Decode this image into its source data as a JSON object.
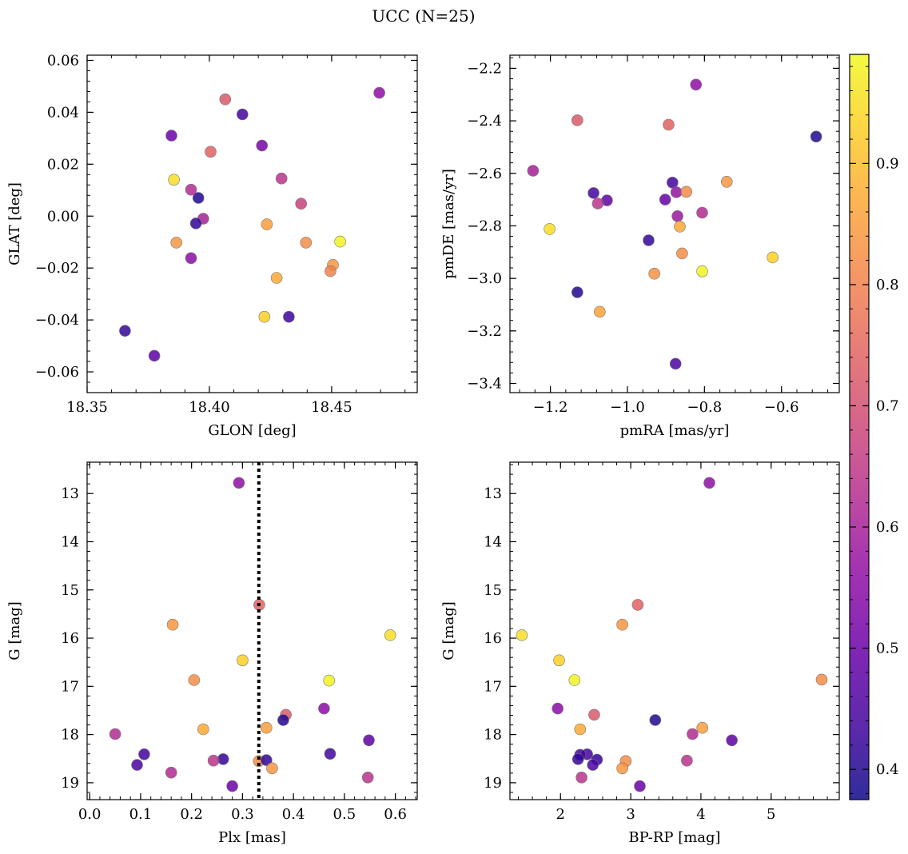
{
  "title": "UCC (N=25)",
  "colorbar": {
    "range": [
      0.375,
      0.99
    ],
    "ticks": [
      0.4,
      0.5,
      0.6,
      0.7,
      0.8,
      0.9
    ],
    "tick_labels": [
      "0.4",
      "0.5",
      "0.6",
      "0.7",
      "0.8",
      "0.9"
    ],
    "colormap": "plasma"
  },
  "chart_data": [
    {
      "type": "scatter",
      "xlabel": "GLON [deg]",
      "ylabel": "GLAT [deg]",
      "xlim": [
        18.35,
        18.485
      ],
      "ylim": [
        -0.068,
        0.062
      ],
      "xticks": [
        18.35,
        18.4,
        18.45
      ],
      "xtick_labels": [
        "18.35",
        "18.40",
        "18.45"
      ],
      "yticks": [
        -0.06,
        -0.04,
        -0.02,
        0.0,
        0.02,
        0.04,
        0.06
      ],
      "ytick_labels": [
        "−0.06",
        "−0.04",
        "−0.02",
        "0.00",
        "0.02",
        "0.04",
        "0.06"
      ],
      "y_inverted": false,
      "points": [
        {
          "x": 18.4695,
          "y": 0.0475,
          "c": 0.56
        },
        {
          "x": 18.4065,
          "y": 0.045,
          "c": 0.72
        },
        {
          "x": 18.4135,
          "y": 0.0392,
          "c": 0.44
        },
        {
          "x": 18.3845,
          "y": 0.031,
          "c": 0.5
        },
        {
          "x": 18.4215,
          "y": 0.0272,
          "c": 0.52
        },
        {
          "x": 18.4005,
          "y": 0.0248,
          "c": 0.74
        },
        {
          "x": 18.3855,
          "y": 0.014,
          "c": 0.95
        },
        {
          "x": 18.4295,
          "y": 0.0145,
          "c": 0.64
        },
        {
          "x": 18.3925,
          "y": 0.0102,
          "c": 0.62
        },
        {
          "x": 18.4375,
          "y": 0.0048,
          "c": 0.67
        },
        {
          "x": 18.3955,
          "y": 0.007,
          "c": 0.4
        },
        {
          "x": 18.3975,
          "y": -0.001,
          "c": 0.6
        },
        {
          "x": 18.3945,
          "y": -0.0028,
          "c": 0.42
        },
        {
          "x": 18.4235,
          "y": -0.0032,
          "c": 0.85
        },
        {
          "x": 18.3865,
          "y": -0.0102,
          "c": 0.84
        },
        {
          "x": 18.4395,
          "y": -0.0102,
          "c": 0.82
        },
        {
          "x": 18.4535,
          "y": -0.0098,
          "c": 0.98
        },
        {
          "x": 18.3925,
          "y": -0.0162,
          "c": 0.55
        },
        {
          "x": 18.4505,
          "y": -0.0188,
          "c": 0.84
        },
        {
          "x": 18.4495,
          "y": -0.0212,
          "c": 0.8
        },
        {
          "x": 18.4275,
          "y": -0.0238,
          "c": 0.87
        },
        {
          "x": 18.4225,
          "y": -0.0388,
          "c": 0.93
        },
        {
          "x": 18.4325,
          "y": -0.0388,
          "c": 0.43
        },
        {
          "x": 18.3655,
          "y": -0.0442,
          "c": 0.42
        },
        {
          "x": 18.3775,
          "y": -0.0538,
          "c": 0.48
        }
      ]
    },
    {
      "type": "scatter",
      "xlabel": "pmRA [mas/yr]",
      "ylabel": "pmDE [mas/yr]",
      "xlim": [
        -1.305,
        -0.45
      ],
      "ylim": [
        -3.435,
        -2.15
      ],
      "xticks": [
        -1.2,
        -1.0,
        -0.8,
        -0.6
      ],
      "xtick_labels": [
        "−1.2",
        "−1.0",
        "−0.8",
        "−0.6"
      ],
      "yticks": [
        -3.4,
        -3.2,
        -3.0,
        -2.8,
        -2.6,
        -2.4,
        -2.2
      ],
      "ytick_labels": [
        "−3.4",
        "−3.2",
        "−3.0",
        "−2.8",
        "−2.6",
        "−2.4",
        "−2.2"
      ],
      "y_inverted": false,
      "points": [
        {
          "x": -0.822,
          "y": -2.262,
          "c": 0.56
        },
        {
          "x": -1.13,
          "y": -2.398,
          "c": 0.72
        },
        {
          "x": -0.893,
          "y": -2.415,
          "c": 0.74
        },
        {
          "x": -0.51,
          "y": -2.46,
          "c": 0.4
        },
        {
          "x": -1.245,
          "y": -2.59,
          "c": 0.6
        },
        {
          "x": -0.883,
          "y": -2.635,
          "c": 0.44
        },
        {
          "x": -0.742,
          "y": -2.632,
          "c": 0.84
        },
        {
          "x": -1.088,
          "y": -2.675,
          "c": 0.44
        },
        {
          "x": -0.873,
          "y": -2.672,
          "c": 0.57
        },
        {
          "x": -0.847,
          "y": -2.67,
          "c": 0.82
        },
        {
          "x": -0.902,
          "y": -2.7,
          "c": 0.49
        },
        {
          "x": -1.053,
          "y": -2.703,
          "c": 0.48
        },
        {
          "x": -1.077,
          "y": -2.715,
          "c": 0.64
        },
        {
          "x": -0.806,
          "y": -2.75,
          "c": 0.62
        },
        {
          "x": -0.87,
          "y": -2.763,
          "c": 0.58
        },
        {
          "x": -1.202,
          "y": -2.812,
          "c": 0.95
        },
        {
          "x": -0.864,
          "y": -2.803,
          "c": 0.87
        },
        {
          "x": -0.945,
          "y": -2.855,
          "c": 0.42
        },
        {
          "x": -0.858,
          "y": -2.905,
          "c": 0.82
        },
        {
          "x": -0.623,
          "y": -2.92,
          "c": 0.93
        },
        {
          "x": -0.93,
          "y": -2.982,
          "c": 0.83
        },
        {
          "x": -0.806,
          "y": -2.973,
          "c": 0.98
        },
        {
          "x": -1.13,
          "y": -3.053,
          "c": 0.4
        },
        {
          "x": -1.072,
          "y": -3.127,
          "c": 0.86
        },
        {
          "x": -0.875,
          "y": -3.325,
          "c": 0.45
        }
      ]
    },
    {
      "type": "scatter",
      "xlabel": "Plx [mas]",
      "ylabel": "G [mag]",
      "xlim": [
        -0.005,
        0.643
      ],
      "ylim": [
        12.35,
        19.35
      ],
      "xticks": [
        0.0,
        0.1,
        0.2,
        0.3,
        0.4,
        0.5,
        0.6
      ],
      "xtick_labels": [
        "0.0",
        "0.1",
        "0.2",
        "0.3",
        "0.4",
        "0.5",
        "0.6"
      ],
      "yticks": [
        13,
        14,
        15,
        16,
        17,
        18,
        19
      ],
      "ytick_labels": [
        "13",
        "14",
        "15",
        "16",
        "17",
        "18",
        "19"
      ],
      "y_inverted": true,
      "vline": {
        "x": 0.332,
        "style": "dotted"
      },
      "points": [
        {
          "x": 0.293,
          "y": 12.78,
          "c": 0.56
        },
        {
          "x": 0.333,
          "y": 15.31,
          "c": 0.74
        },
        {
          "x": 0.163,
          "y": 15.72,
          "c": 0.84
        },
        {
          "x": 0.59,
          "y": 15.94,
          "c": 0.95
        },
        {
          "x": 0.3,
          "y": 16.46,
          "c": 0.93
        },
        {
          "x": 0.205,
          "y": 16.87,
          "c": 0.82
        },
        {
          "x": 0.47,
          "y": 16.88,
          "c": 0.98
        },
        {
          "x": 0.46,
          "y": 17.46,
          "c": 0.55
        },
        {
          "x": 0.385,
          "y": 17.59,
          "c": 0.72
        },
        {
          "x": 0.38,
          "y": 17.7,
          "c": 0.4
        },
        {
          "x": 0.223,
          "y": 17.89,
          "c": 0.87
        },
        {
          "x": 0.347,
          "y": 17.86,
          "c": 0.85
        },
        {
          "x": 0.05,
          "y": 17.99,
          "c": 0.62
        },
        {
          "x": 0.548,
          "y": 18.12,
          "c": 0.48
        },
        {
          "x": 0.107,
          "y": 18.41,
          "c": 0.44
        },
        {
          "x": 0.472,
          "y": 18.4,
          "c": 0.44
        },
        {
          "x": 0.262,
          "y": 18.51,
          "c": 0.42
        },
        {
          "x": 0.243,
          "y": 18.54,
          "c": 0.64
        },
        {
          "x": 0.332,
          "y": 18.55,
          "c": 0.82
        },
        {
          "x": 0.347,
          "y": 18.53,
          "c": 0.42
        },
        {
          "x": 0.093,
          "y": 18.63,
          "c": 0.45
        },
        {
          "x": 0.358,
          "y": 18.7,
          "c": 0.84
        },
        {
          "x": 0.16,
          "y": 18.79,
          "c": 0.62
        },
        {
          "x": 0.546,
          "y": 18.89,
          "c": 0.64
        },
        {
          "x": 0.28,
          "y": 19.07,
          "c": 0.5
        }
      ]
    },
    {
      "type": "scatter",
      "xlabel": "BP-RP [mag]",
      "ylabel": "G [mag]",
      "xlim": [
        1.28,
        5.97
      ],
      "ylim": [
        12.35,
        19.35
      ],
      "xticks": [
        2,
        3,
        4,
        5
      ],
      "xtick_labels": [
        "2",
        "3",
        "4",
        "5"
      ],
      "yticks": [
        13,
        14,
        15,
        16,
        17,
        18,
        19
      ],
      "ytick_labels": [
        "13",
        "14",
        "15",
        "16",
        "17",
        "18",
        "19"
      ],
      "y_inverted": true,
      "points": [
        {
          "x": 4.12,
          "y": 12.78,
          "c": 0.56
        },
        {
          "x": 3.1,
          "y": 15.31,
          "c": 0.74
        },
        {
          "x": 2.88,
          "y": 15.72,
          "c": 0.84
        },
        {
          "x": 1.45,
          "y": 15.94,
          "c": 0.95
        },
        {
          "x": 1.98,
          "y": 16.46,
          "c": 0.93
        },
        {
          "x": 2.2,
          "y": 16.87,
          "c": 0.98
        },
        {
          "x": 5.72,
          "y": 16.86,
          "c": 0.82
        },
        {
          "x": 1.96,
          "y": 17.46,
          "c": 0.55
        },
        {
          "x": 2.48,
          "y": 17.59,
          "c": 0.72
        },
        {
          "x": 3.35,
          "y": 17.7,
          "c": 0.4
        },
        {
          "x": 2.28,
          "y": 17.89,
          "c": 0.87
        },
        {
          "x": 4.02,
          "y": 17.86,
          "c": 0.85
        },
        {
          "x": 3.88,
          "y": 17.99,
          "c": 0.62
        },
        {
          "x": 4.44,
          "y": 18.12,
          "c": 0.48
        },
        {
          "x": 2.38,
          "y": 18.41,
          "c": 0.44
        },
        {
          "x": 2.28,
          "y": 18.42,
          "c": 0.44
        },
        {
          "x": 2.25,
          "y": 18.51,
          "c": 0.42
        },
        {
          "x": 2.52,
          "y": 18.52,
          "c": 0.42
        },
        {
          "x": 3.8,
          "y": 18.54,
          "c": 0.64
        },
        {
          "x": 2.93,
          "y": 18.55,
          "c": 0.82
        },
        {
          "x": 2.46,
          "y": 18.63,
          "c": 0.45
        },
        {
          "x": 2.88,
          "y": 18.7,
          "c": 0.84
        },
        {
          "x": 2.3,
          "y": 18.89,
          "c": 0.64
        },
        {
          "x": 3.13,
          "y": 19.07,
          "c": 0.5
        }
      ]
    }
  ]
}
